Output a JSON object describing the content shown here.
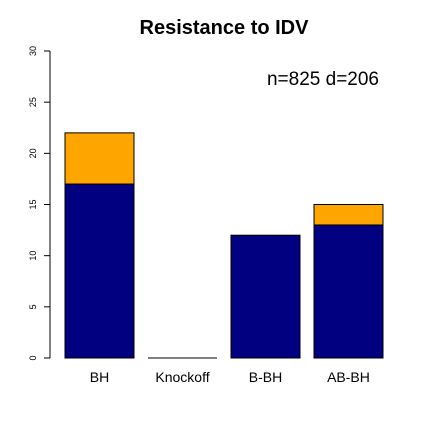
{
  "chart_data": {
    "type": "bar",
    "stacked": true,
    "title": "Resistance to IDV",
    "annotation": "n=825 d=206",
    "xlabel": "",
    "ylabel": "",
    "ylim": [
      0,
      30
    ],
    "yticks": [
      0,
      5,
      10,
      15,
      20,
      25,
      30
    ],
    "categories": [
      "BH",
      "Knockoff",
      "B-BH",
      "AB-BH"
    ],
    "series": [
      {
        "values": [
          17,
          0,
          12,
          13
        ],
        "color": "#000080"
      },
      {
        "values": [
          5,
          0,
          0,
          2
        ],
        "color": "#FFA500"
      }
    ],
    "grid": false,
    "legend": "none"
  }
}
